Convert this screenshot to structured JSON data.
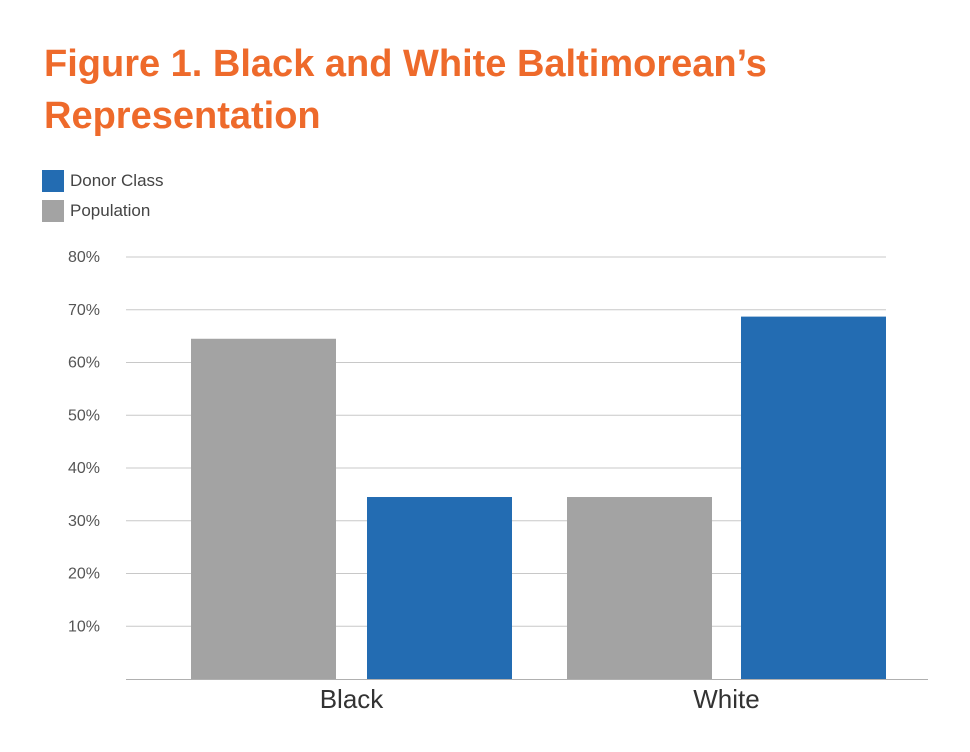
{
  "title": "Figure 1. Black and White Baltimorean’s Representation",
  "chart_data": {
    "type": "bar",
    "title": "Figure 1. Black and White Baltimorean’s Representation",
    "categories": [
      "Black",
      "White"
    ],
    "series": [
      {
        "name": "Population",
        "values": [
          64.5,
          34.5
        ],
        "color": "#A3A3A3"
      },
      {
        "name": "Donor Class",
        "values": [
          34.5,
          68.7
        ],
        "color": "#236CB2"
      }
    ],
    "legend_order": [
      "Donor Class",
      "Population"
    ],
    "legend_position": "top-left",
    "ylim": [
      0,
      80
    ],
    "yticks": [
      10,
      20,
      30,
      40,
      50,
      60,
      70,
      80
    ],
    "ytick_labels": [
      "10%",
      "20%",
      "30%",
      "40%",
      "50%",
      "60%",
      "70%",
      "80%"
    ],
    "grid": true,
    "xlabel": "",
    "ylabel": ""
  }
}
